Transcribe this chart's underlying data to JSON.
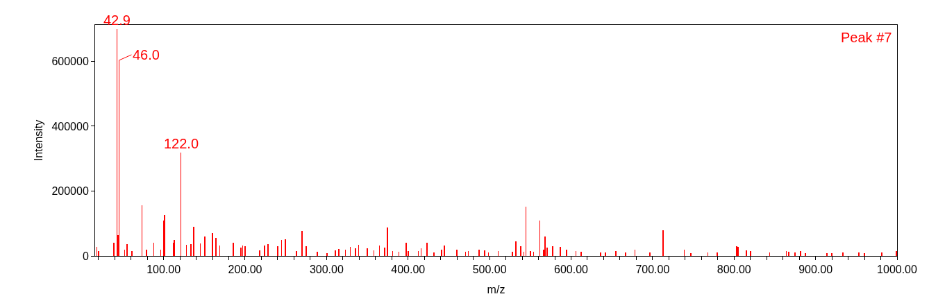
{
  "chart_data": {
    "type": "bar",
    "xlabel": "m/z",
    "ylabel": "Intensity",
    "x": [
      18,
      20.5,
      38.9,
      42.9,
      44,
      45.3,
      52.3,
      55.1,
      61,
      73.6,
      79,
      88,
      96.6,
      100.6,
      101.4,
      112,
      113,
      121.3,
      128,
      133.4,
      137.2,
      145,
      150.8,
      160.2,
      164.4,
      169,
      185.7,
      195,
      197,
      200,
      218,
      223.7,
      228,
      240,
      244.8,
      249.7,
      263,
      269.7,
      275,
      288.8,
      300.5,
      310.6,
      315.2,
      323,
      329,
      335.5,
      339.3,
      350,
      358,
      364.8,
      371,
      374.8,
      381,
      388.6,
      397.8,
      400,
      412.5,
      416,
      423,
      432,
      441,
      444.3,
      459.7,
      470.5,
      474,
      487,
      494,
      498.5,
      510.5,
      528,
      532.3,
      538.5,
      542,
      544.7,
      550,
      554,
      561.8,
      566.5,
      568.3,
      570.5,
      577.4,
      586.8,
      594.5,
      606,
      612.3,
      636.4,
      642,
      655,
      667,
      678.3,
      696.5,
      713,
      739,
      747,
      767.8,
      779.6,
      803,
      804.7,
      815,
      820,
      843.6,
      864,
      867,
      875,
      881.4,
      887.6,
      914,
      920,
      933.6,
      953,
      960,
      981,
      998.9
    ],
    "values": [
      28000,
      16000,
      41000,
      700000,
      65000,
      603000,
      19000,
      37000,
      14000,
      156000,
      20000,
      40000,
      20000,
      108000,
      126000,
      40000,
      50000,
      319000,
      34000,
      36000,
      90000,
      38000,
      60000,
      70000,
      55000,
      32000,
      40000,
      26000,
      32000,
      30000,
      18000,
      32000,
      36000,
      30000,
      50000,
      52000,
      14000,
      77000,
      30000,
      12000,
      8000,
      18000,
      22000,
      20000,
      28000,
      24000,
      34000,
      24000,
      18000,
      32000,
      26000,
      87000,
      16000,
      12000,
      41000,
      16000,
      14000,
      24000,
      41000,
      10000,
      20000,
      32000,
      20000,
      12000,
      16000,
      20000,
      18000,
      10000,
      16000,
      12000,
      44000,
      30000,
      12000,
      152000,
      14000,
      12000,
      109000,
      20000,
      60000,
      26000,
      30000,
      28000,
      20000,
      16000,
      12000,
      10000,
      10000,
      14000,
      10000,
      20000,
      10000,
      80000,
      20000,
      8000,
      10000,
      10000,
      31000,
      28000,
      18000,
      16000,
      10000,
      15000,
      12000,
      10000,
      16000,
      8000,
      8000,
      8000,
      10000,
      10000,
      8000,
      10000,
      14000
    ],
    "color": "#ff0000",
    "xlim": [
      16,
      1000
    ],
    "xticks": [
      {
        "value": 20,
        "label": null
      },
      {
        "value": 40,
        "label": null
      },
      {
        "value": 60,
        "label": null
      },
      {
        "value": 80,
        "label": null
      },
      {
        "value": 100,
        "label": "100.00"
      },
      {
        "value": 120,
        "label": null
      },
      {
        "value": 140,
        "label": null
      },
      {
        "value": 160,
        "label": null
      },
      {
        "value": 180,
        "label": null
      },
      {
        "value": 200,
        "label": "200.00"
      },
      {
        "value": 220,
        "label": null
      },
      {
        "value": 240,
        "label": null
      },
      {
        "value": 260,
        "label": null
      },
      {
        "value": 280,
        "label": null
      },
      {
        "value": 300,
        "label": "300.00"
      },
      {
        "value": 320,
        "label": null
      },
      {
        "value": 340,
        "label": null
      },
      {
        "value": 360,
        "label": null
      },
      {
        "value": 380,
        "label": null
      },
      {
        "value": 400,
        "label": "400.00"
      },
      {
        "value": 420,
        "label": null
      },
      {
        "value": 440,
        "label": null
      },
      {
        "value": 460,
        "label": null
      },
      {
        "value": 480,
        "label": null
      },
      {
        "value": 500,
        "label": "500.00"
      },
      {
        "value": 520,
        "label": null
      },
      {
        "value": 540,
        "label": null
      },
      {
        "value": 560,
        "label": null
      },
      {
        "value": 580,
        "label": null
      },
      {
        "value": 600,
        "label": "600.00"
      },
      {
        "value": 620,
        "label": null
      },
      {
        "value": 640,
        "label": null
      },
      {
        "value": 660,
        "label": null
      },
      {
        "value": 680,
        "label": null
      },
      {
        "value": 700,
        "label": "700.00"
      },
      {
        "value": 720,
        "label": null
      },
      {
        "value": 740,
        "label": null
      },
      {
        "value": 760,
        "label": null
      },
      {
        "value": 780,
        "label": null
      },
      {
        "value": 800,
        "label": "800.00"
      },
      {
        "value": 820,
        "label": null
      },
      {
        "value": 840,
        "label": null
      },
      {
        "value": 860,
        "label": null
      },
      {
        "value": 880,
        "label": null
      },
      {
        "value": 900,
        "label": "900.00"
      },
      {
        "value": 920,
        "label": null
      },
      {
        "value": 940,
        "label": null
      },
      {
        "value": 960,
        "label": null
      },
      {
        "value": 980,
        "label": null
      },
      {
        "value": 1000,
        "label": "1000.00"
      }
    ],
    "ylim": [
      0,
      712000
    ],
    "yticks": [
      0,
      200000,
      400000,
      600000
    ],
    "annotations": [
      {
        "text": "42.9",
        "x": 42.9,
        "y": 700000
      },
      {
        "text": "46.0",
        "x": 45.3,
        "y": 603000
      },
      {
        "text": "122.0",
        "x": 121.3,
        "y": 319000
      },
      "Peak #7"
    ]
  }
}
